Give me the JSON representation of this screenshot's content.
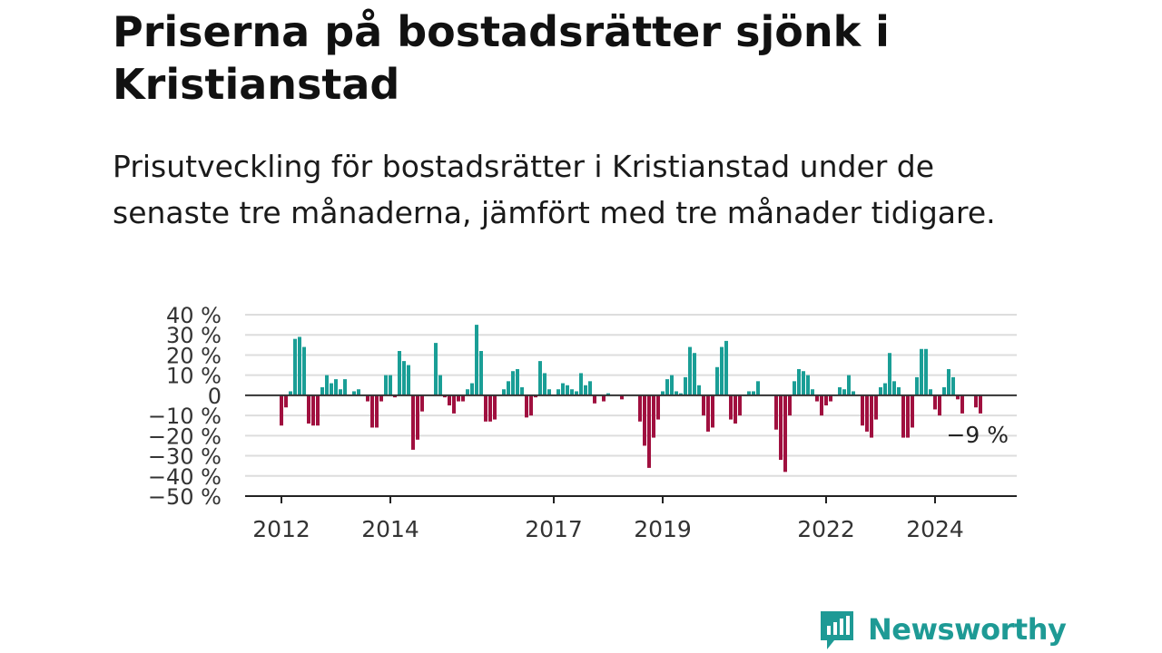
{
  "header": {
    "title": "Priserna på bostadsrätter sjönk i Kristianstad",
    "subtitle": "Prisutveckling för bostadsrätter i Kristianstad under de senaste tre månaderna, jämfört med tre månader tidigare."
  },
  "brand": {
    "name": "Newsworthy",
    "icon": "newsworthy-logo-icon"
  },
  "colors": {
    "positive": "#1a9e96",
    "negative": "#a0103f",
    "grid": "#dddddd",
    "axis": "#222222",
    "brand": "#1e9a95"
  },
  "chart_data": {
    "type": "bar",
    "y_unit": "%",
    "ylim": [
      -50,
      40
    ],
    "y_ticks": [
      40,
      30,
      20,
      10,
      0,
      -10,
      -20,
      -30,
      -40,
      -50
    ],
    "y_tick_labels": [
      "40 %",
      "30 %",
      "20 %",
      "10 %",
      "0",
      "−10 %",
      "−20 %",
      "−30 %",
      "−40 %",
      "−50 %"
    ],
    "x_ticks": [
      {
        "label": "2012",
        "index": 0
      },
      {
        "label": "2014",
        "index": 24
      },
      {
        "label": "2017",
        "index": 60
      },
      {
        "label": "2019",
        "index": 84
      },
      {
        "label": "2022",
        "index": 120
      },
      {
        "label": "2024",
        "index": 144
      }
    ],
    "grid": true,
    "end_label": "−9 %",
    "series": [
      {
        "values": [
          -15,
          -6,
          2,
          28,
          29,
          24,
          -14,
          -15,
          -15,
          4,
          10,
          6,
          8,
          3,
          8,
          0,
          2,
          3,
          0,
          -3,
          -16,
          -16,
          -3,
          10,
          10,
          -1,
          22,
          17,
          15,
          -27,
          -22,
          -8,
          0,
          0,
          26,
          10,
          -1,
          -5,
          -9,
          -3,
          -3,
          3,
          6,
          35,
          22,
          -13,
          -13,
          -12,
          0,
          3,
          7,
          12,
          13,
          4,
          -11,
          -10,
          -1,
          17,
          11,
          3,
          0,
          3,
          6,
          5,
          3,
          2,
          11,
          5,
          7,
          -4,
          0,
          -3,
          1,
          0,
          0,
          -2,
          0,
          0,
          0,
          -13,
          -25,
          -36,
          -21,
          -12,
          2,
          8,
          10,
          2,
          1,
          9,
          24,
          21,
          5,
          -10,
          -18,
          -16,
          14,
          24,
          27,
          -12,
          -14,
          -10,
          0,
          2,
          2,
          7,
          0,
          0,
          0,
          -17,
          -32,
          -38,
          -10,
          7,
          13,
          12,
          10,
          3,
          -3,
          -10,
          -5,
          -3,
          0,
          4,
          3,
          10,
          2,
          0,
          -15,
          -18,
          -21,
          -12,
          4,
          6,
          21,
          7,
          4,
          -21,
          -21,
          -16,
          9,
          23,
          23,
          3,
          -7,
          -10,
          4,
          13,
          9,
          -2,
          -9,
          0,
          0,
          -6,
          -9
        ]
      }
    ]
  }
}
